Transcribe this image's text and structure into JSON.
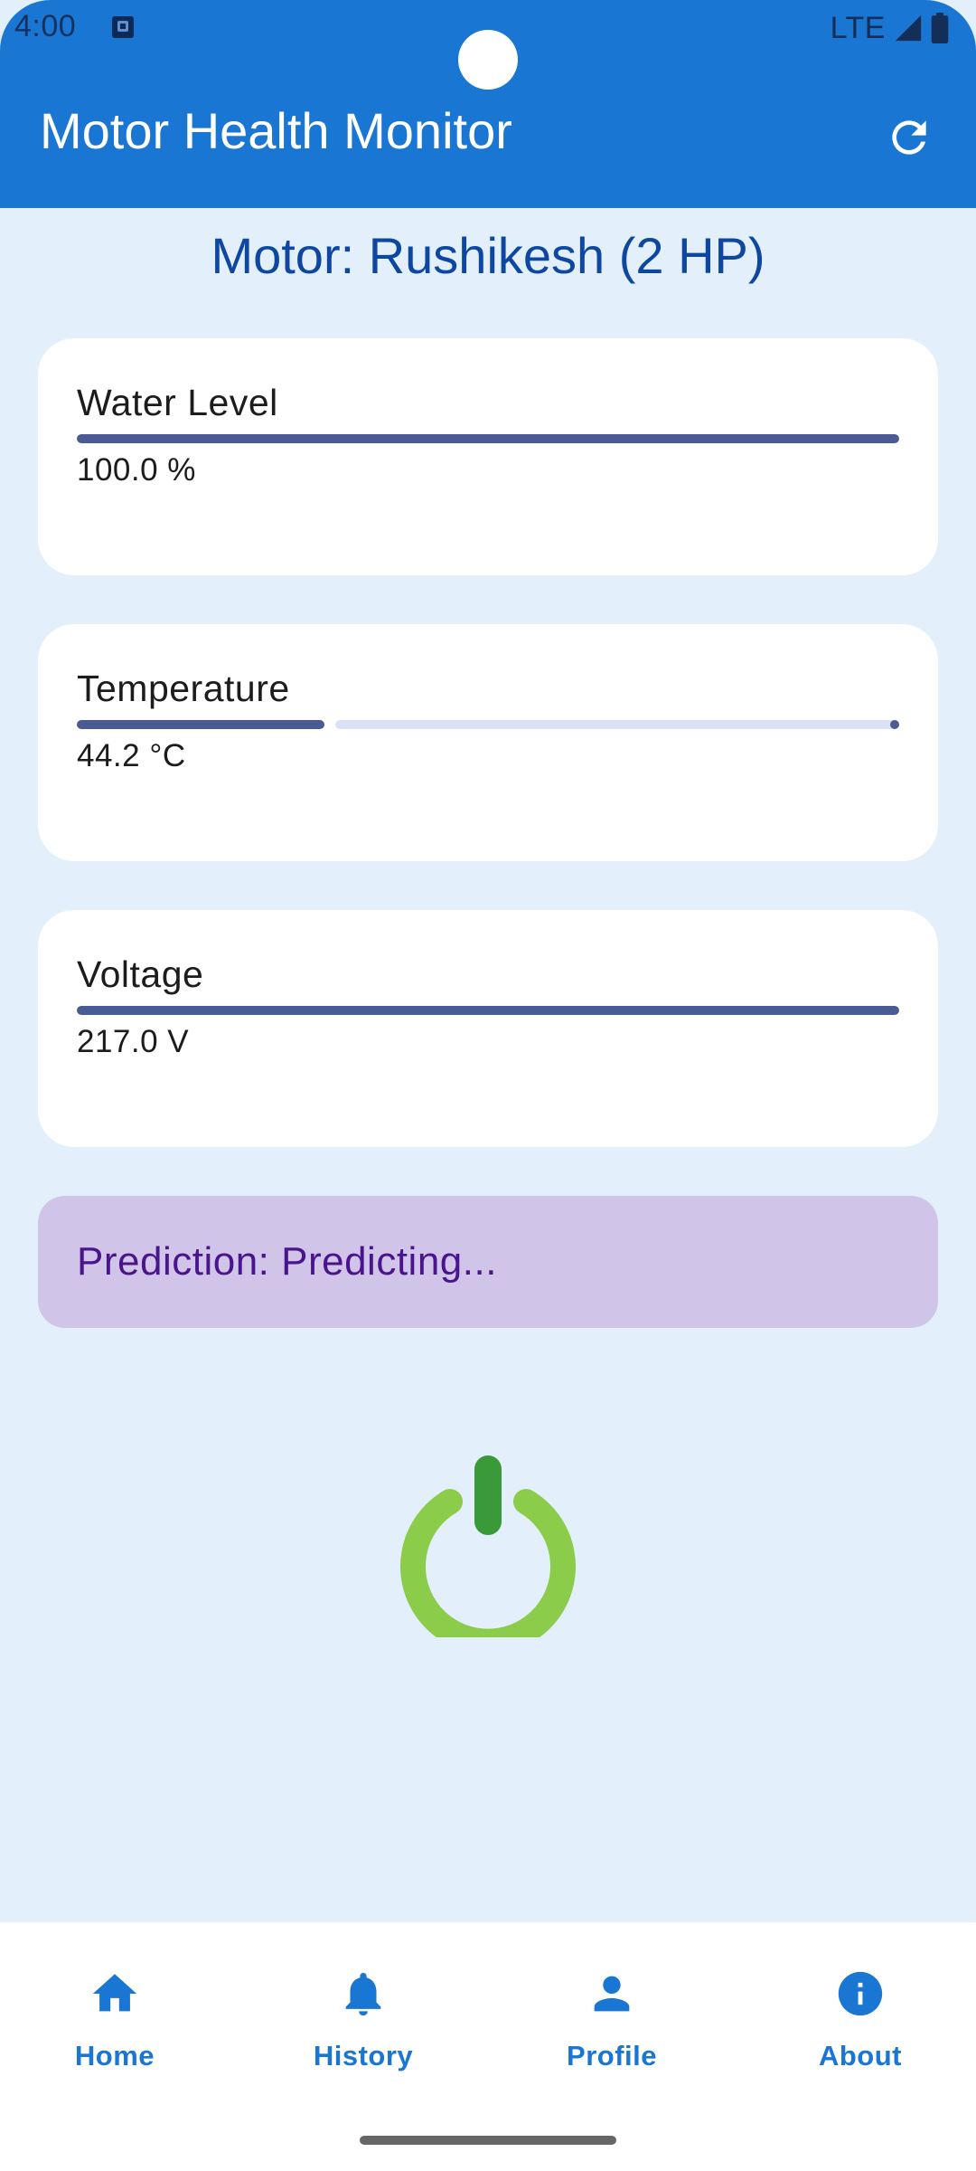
{
  "status_bar": {
    "time": "4:00",
    "network": "LTE"
  },
  "app_bar": {
    "title": "Motor Health Monitor",
    "refresh_icon": "refresh-icon"
  },
  "motor": {
    "title": "Motor: Rushikesh (2 HP)"
  },
  "cards": [
    {
      "label": "Water Level",
      "value": "100.0 %",
      "progress_percent": 100
    },
    {
      "label": "Temperature",
      "value": "44.2 °C",
      "progress_percent": 30
    },
    {
      "label": "Voltage",
      "value": "217.0 V",
      "progress_percent": 100
    }
  ],
  "prediction": {
    "text": "Prediction: Predicting..."
  },
  "power": {
    "icon": "power-icon",
    "ring_color": "#8BCC4A",
    "stem_color": "#3A9A3A"
  },
  "bottom_nav": {
    "items": [
      {
        "label": "Home",
        "icon": "home-icon"
      },
      {
        "label": "History",
        "icon": "bell-icon"
      },
      {
        "label": "Profile",
        "icon": "person-icon"
      },
      {
        "label": "About",
        "icon": "info-icon"
      }
    ]
  },
  "colors": {
    "primary": "#1976D2",
    "background": "#E3F0FB",
    "progress": "#4A5A93",
    "prediction_bg": "#D1C4E9",
    "prediction_text": "#4A148C"
  }
}
